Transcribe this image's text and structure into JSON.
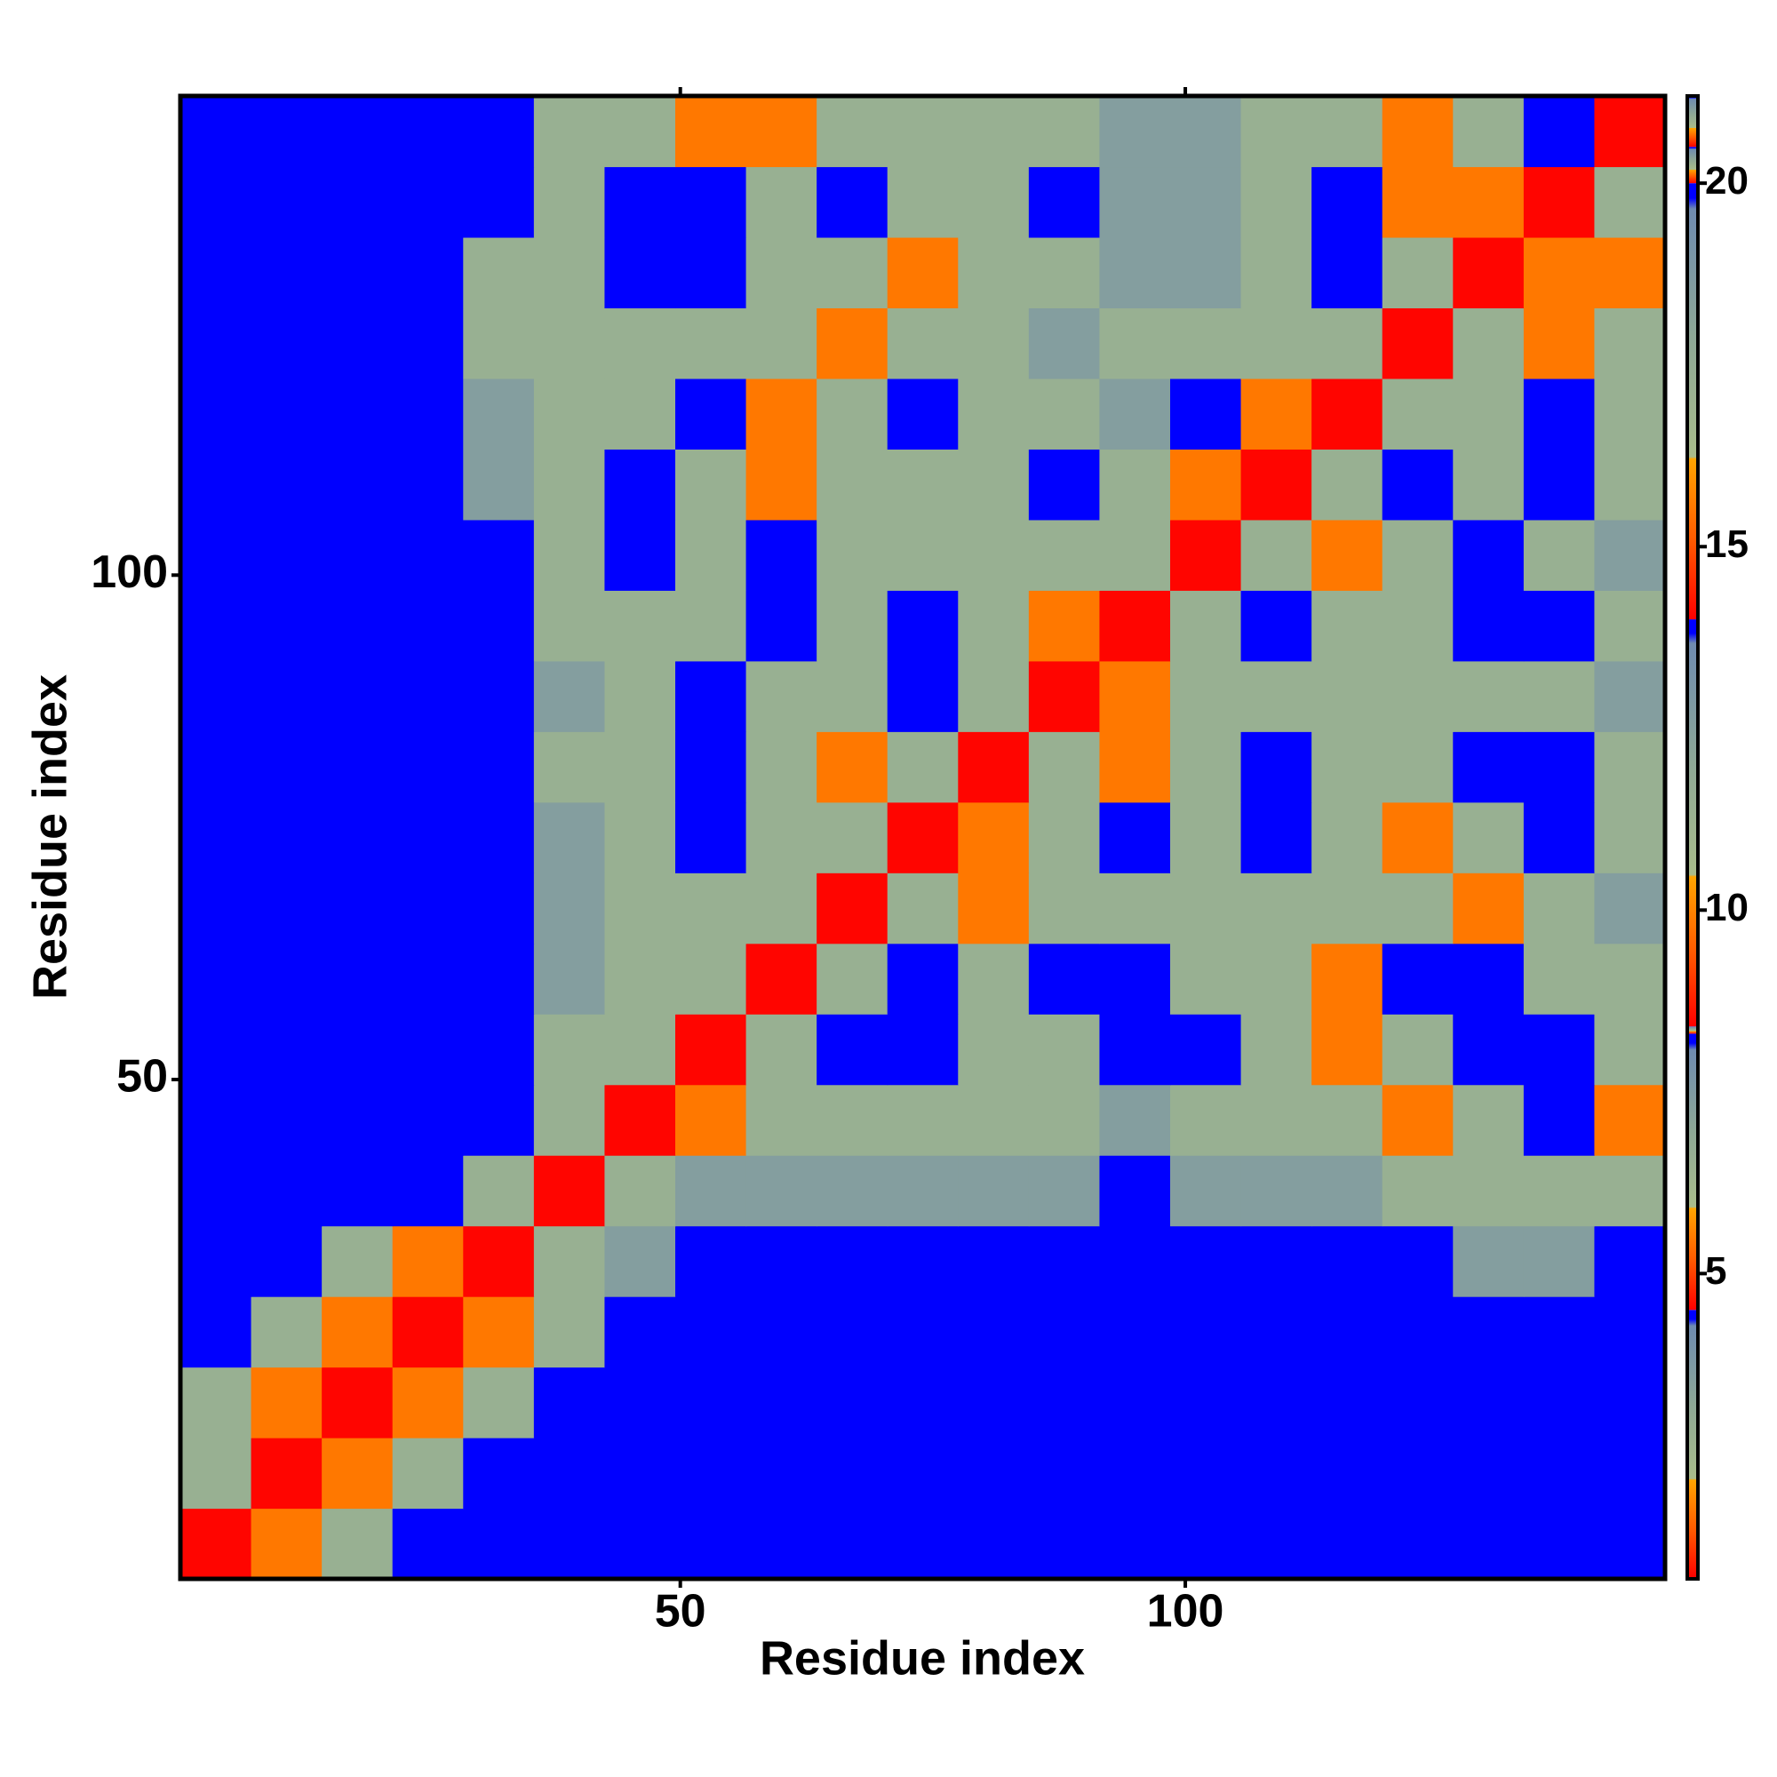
{
  "chart_data": {
    "type": "heatmap",
    "x_label": "Residue index",
    "y_label": "Residue index",
    "x": [
      4,
      11,
      18,
      25,
      32,
      39,
      46,
      53,
      60,
      67,
      74,
      81,
      88,
      95,
      102,
      109,
      116,
      123,
      130,
      137,
      144
    ],
    "y": [
      4,
      11,
      18,
      25,
      32,
      39,
      46,
      53,
      60,
      67,
      74,
      81,
      88,
      95,
      102,
      109,
      116,
      123,
      130,
      137,
      144
    ],
    "z": [
      [
        1,
        6,
        12,
        21,
        21,
        21,
        21,
        21,
        21,
        21,
        21,
        21,
        21,
        21,
        21,
        21,
        21,
        21,
        21,
        21,
        21
      ],
      [
        12,
        1,
        6,
        12,
        21,
        21,
        21,
        21,
        21,
        21,
        21,
        21,
        21,
        21,
        21,
        21,
        21,
        21,
        21,
        21,
        21
      ],
      [
        12,
        6,
        1,
        6,
        12,
        21,
        21,
        21,
        21,
        21,
        21,
        21,
        21,
        21,
        21,
        21,
        21,
        21,
        21,
        21,
        21
      ],
      [
        21,
        12,
        6,
        1,
        6,
        12,
        21,
        21,
        21,
        21,
        21,
        21,
        21,
        21,
        21,
        21,
        21,
        21,
        21,
        21,
        21
      ],
      [
        21,
        21,
        12,
        6,
        1,
        12,
        16,
        21,
        21,
        21,
        21,
        21,
        21,
        21,
        21,
        21,
        21,
        21,
        16,
        16,
        21
      ],
      [
        21,
        21,
        21,
        21,
        12,
        1,
        12,
        16,
        16,
        16,
        16,
        16,
        16,
        21,
        16,
        16,
        16,
        12,
        12,
        12,
        12
      ],
      [
        21,
        21,
        21,
        21,
        21,
        12,
        1,
        6,
        12,
        12,
        12,
        12,
        12,
        16,
        12,
        12,
        12,
        6,
        12,
        21,
        6
      ],
      [
        21,
        21,
        21,
        21,
        21,
        12,
        12,
        1,
        12,
        21,
        21,
        12,
        12,
        21,
        21,
        12,
        6,
        12,
        21,
        21,
        12
      ],
      [
        21,
        21,
        21,
        21,
        21,
        16,
        12,
        12,
        1,
        12,
        21,
        12,
        21,
        21,
        12,
        12,
        6,
        21,
        21,
        12,
        12
      ],
      [
        21,
        21,
        21,
        21,
        21,
        16,
        12,
        12,
        12,
        1,
        12,
        6,
        12,
        12,
        12,
        12,
        12,
        12,
        6,
        12,
        16
      ],
      [
        21,
        21,
        21,
        21,
        21,
        16,
        12,
        21,
        12,
        12,
        1,
        6,
        12,
        21,
        12,
        21,
        12,
        6,
        12,
        21,
        12
      ],
      [
        21,
        21,
        21,
        21,
        21,
        12,
        12,
        21,
        12,
        6,
        12,
        1,
        12,
        6,
        12,
        21,
        12,
        12,
        21,
        21,
        12
      ],
      [
        21,
        21,
        21,
        21,
        21,
        16,
        12,
        21,
        12,
        12,
        21,
        12,
        1,
        6,
        12,
        12,
        12,
        12,
        12,
        12,
        16
      ],
      [
        21,
        21,
        21,
        21,
        21,
        12,
        12,
        12,
        21,
        12,
        21,
        12,
        6,
        1,
        12,
        21,
        12,
        12,
        21,
        21,
        12
      ],
      [
        21,
        21,
        21,
        21,
        21,
        12,
        21,
        12,
        21,
        12,
        12,
        12,
        12,
        12,
        1,
        12,
        6,
        12,
        21,
        12,
        16
      ],
      [
        21,
        21,
        21,
        21,
        16,
        12,
        21,
        12,
        6,
        12,
        12,
        12,
        21,
        12,
        6,
        1,
        12,
        21,
        12,
        21,
        12
      ],
      [
        21,
        21,
        21,
        21,
        16,
        12,
        12,
        21,
        6,
        12,
        21,
        12,
        12,
        16,
        21,
        6,
        1,
        12,
        12,
        21,
        12
      ],
      [
        21,
        21,
        21,
        21,
        12,
        12,
        12,
        12,
        12,
        6,
        12,
        12,
        16,
        12,
        12,
        12,
        12,
        1,
        12,
        6,
        12
      ],
      [
        21,
        21,
        21,
        21,
        12,
        12,
        21,
        21,
        12,
        12,
        6,
        12,
        12,
        16,
        16,
        12,
        21,
        12,
        1,
        6,
        6
      ],
      [
        21,
        21,
        21,
        21,
        21,
        12,
        21,
        21,
        12,
        21,
        12,
        12,
        21,
        16,
        16,
        12,
        21,
        6,
        6,
        1,
        12
      ],
      [
        21,
        21,
        21,
        21,
        21,
        12,
        12,
        6,
        6,
        12,
        12,
        12,
        12,
        16,
        16,
        12,
        12,
        6,
        12,
        21,
        1
      ]
    ],
    "xlim": [
      0.5,
      147.5
    ],
    "ylim": [
      0.5,
      147.5
    ],
    "xticks": [
      50,
      100
    ],
    "yticks": [
      50,
      100
    ],
    "colorbar": {
      "lim": [
        0.8,
        21.2
      ],
      "ticks": [
        5,
        10,
        15,
        20
      ],
      "stops": [
        {
          "value": 0.8,
          "color": "#ff0000"
        },
        {
          "value": 4.5,
          "color": "#ff5a00"
        },
        {
          "value": 8.3,
          "color": "#ffa500"
        },
        {
          "value": 8.4,
          "color": "#a9bd8b"
        },
        {
          "value": 14,
          "color": "#8ea896"
        },
        {
          "value": 20,
          "color": "#6f8bb0"
        },
        {
          "value": 20.5,
          "color": "#0000ff"
        },
        {
          "value": 21.2,
          "color": "#0000ff"
        }
      ]
    }
  }
}
